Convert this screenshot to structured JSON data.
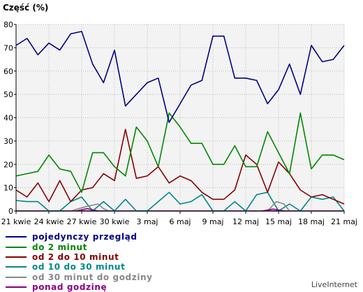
{
  "chart_data": {
    "type": "line",
    "ylabel": "Część (%)",
    "ylim": [
      0,
      80
    ],
    "yticks": [
      0,
      10,
      20,
      30,
      40,
      50,
      60,
      70,
      80
    ],
    "grid": true,
    "x": [
      0,
      1,
      2,
      3,
      4,
      5,
      6,
      7,
      8,
      9,
      10,
      11,
      12,
      13,
      14,
      15,
      16,
      17,
      18,
      19,
      20,
      21,
      22,
      23,
      24,
      25,
      26,
      27,
      28,
      29,
      30
    ],
    "xticks": [
      {
        "x": 0,
        "label": "21 kwie"
      },
      {
        "x": 3,
        "label": "24 kwie"
      },
      {
        "x": 6,
        "label": "27 kwie"
      },
      {
        "x": 9,
        "label": "30 kwie"
      },
      {
        "x": 12,
        "label": "3 maj"
      },
      {
        "x": 15,
        "label": "6 maj"
      },
      {
        "x": 18,
        "label": "9 maj"
      },
      {
        "x": 21,
        "label": "12 maj"
      },
      {
        "x": 24,
        "label": "15 maj"
      },
      {
        "x": 27,
        "label": "18 maj"
      },
      {
        "x": 30,
        "label": "21 maj"
      }
    ],
    "series": [
      {
        "name": "pojedynczy przegląd",
        "color": "#000088",
        "values": [
          71,
          74,
          67,
          72,
          69,
          76,
          77,
          63,
          55,
          69,
          45,
          50,
          55,
          57,
          38,
          46,
          54,
          56,
          75,
          75,
          57,
          57,
          56,
          46,
          52,
          63,
          50,
          71,
          64,
          65,
          71
        ]
      },
      {
        "name": "do 2 minut",
        "color": "#008800",
        "values": [
          15,
          16,
          17,
          24,
          18,
          17,
          8,
          25,
          25,
          19,
          15,
          36,
          30,
          19,
          42,
          36,
          29,
          29,
          20,
          20,
          28,
          19,
          19,
          34,
          25,
          16,
          42,
          18,
          24,
          24,
          22
        ]
      },
      {
        "name": "od 2 do 10 minut",
        "color": "#880000",
        "values": [
          9,
          6,
          12,
          4,
          13,
          4,
          9,
          10,
          16,
          13,
          35,
          14,
          15,
          19,
          12,
          15,
          13,
          8,
          5,
          5,
          9,
          24,
          20,
          8,
          21,
          16,
          9,
          6,
          7,
          5,
          3
        ]
      },
      {
        "name": "od 10 do 30 minut",
        "color": "#008888",
        "values": [
          4.5,
          4,
          4,
          0,
          0,
          4,
          6,
          0,
          4,
          0,
          5,
          0,
          0,
          4,
          8,
          3,
          4,
          7,
          0,
          0,
          4,
          0,
          7,
          8,
          0,
          3,
          0,
          6,
          5,
          6,
          0
        ]
      },
      {
        "name": "od 30 minut do godziny",
        "color": "#888888",
        "values": [
          0,
          0,
          0,
          0,
          0,
          0,
          0,
          0,
          0,
          0,
          0,
          0,
          0,
          0,
          0,
          0,
          0,
          0,
          0,
          0,
          0,
          0,
          0,
          0,
          0,
          0,
          0,
          0,
          0,
          0,
          0
        ]
      },
      {
        "name": "ponad godzinę",
        "color": "#880088",
        "values": [
          0,
          0,
          0,
          0,
          0,
          0,
          0,
          0,
          0,
          0,
          0,
          0,
          0,
          0,
          0,
          0,
          0,
          0,
          0,
          0,
          0,
          0,
          0,
          0,
          0,
          0,
          0,
          0,
          0,
          0,
          0
        ]
      }
    ],
    "overlays": [
      {
        "series": "od 30 minut do godziny",
        "points": [
          [
            5,
            0
          ],
          [
            6.5,
            2
          ],
          [
            7.5,
            3
          ],
          [
            8,
            1
          ],
          [
            8.5,
            0
          ]
        ]
      },
      {
        "series": "od 30 minut do godziny",
        "points": [
          [
            22,
            0
          ],
          [
            23,
            0
          ],
          [
            23.8,
            4
          ],
          [
            24.5,
            3
          ],
          [
            25,
            0
          ]
        ]
      },
      {
        "series": "ponad godzinę",
        "points": [
          [
            5.5,
            0
          ],
          [
            6.5,
            1
          ],
          [
            7.5,
            0
          ]
        ]
      },
      {
        "series": "ponad godzinę",
        "points": [
          [
            22.5,
            0
          ],
          [
            23.5,
            0.8
          ],
          [
            24.5,
            0
          ]
        ]
      }
    ]
  },
  "branding": "LiveInternet"
}
